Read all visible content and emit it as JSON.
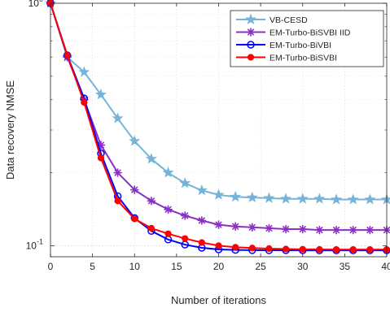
{
  "chart_data": {
    "type": "line",
    "title": "",
    "xlabel": "Number of iterations",
    "ylabel": "Data recovery NMSE",
    "xlim": [
      0,
      40
    ],
    "ylim": [
      0.09,
      1
    ],
    "y_scale": "log",
    "grid": true,
    "legend_position": "top-right",
    "x_ticks": [
      0,
      5,
      10,
      15,
      20,
      25,
      30,
      35,
      40
    ],
    "x_tick_labels": [
      "0",
      "5",
      "10",
      "15",
      "20",
      "25",
      "30",
      "35",
      "40"
    ],
    "y_ticks": [
      0.1,
      1
    ],
    "y_tick_labels": [
      {
        "base": "10",
        "exp": "-1"
      },
      {
        "base": "10",
        "exp": "0"
      }
    ],
    "series": [
      {
        "name": "VB-CESD",
        "color": "#76b4d7",
        "marker": "pentagram",
        "x": [
          0,
          2,
          4,
          6,
          8,
          10,
          12,
          14,
          16,
          18,
          20,
          22,
          24,
          26,
          28,
          30,
          32,
          34,
          36,
          38,
          40
        ],
        "y": [
          1.0,
          0.6,
          0.52,
          0.42,
          0.335,
          0.27,
          0.228,
          0.2,
          0.181,
          0.169,
          0.162,
          0.159,
          0.158,
          0.157,
          0.156,
          0.156,
          0.156,
          0.155,
          0.155,
          0.155,
          0.155
        ]
      },
      {
        "name": "EM-Turbo-BiSVBI IID",
        "color": "#8b2fc9",
        "marker": "star",
        "x": [
          0,
          2,
          4,
          6,
          8,
          10,
          12,
          14,
          16,
          18,
          20,
          22,
          24,
          26,
          28,
          30,
          32,
          34,
          36,
          38,
          40
        ],
        "y": [
          1.0,
          0.6,
          0.4,
          0.26,
          0.2,
          0.17,
          0.153,
          0.141,
          0.133,
          0.127,
          0.122,
          0.12,
          0.119,
          0.118,
          0.117,
          0.117,
          0.116,
          0.116,
          0.116,
          0.116,
          0.116
        ]
      },
      {
        "name": "EM-Turbo-BiVBI",
        "color": "#0000ff",
        "marker": "circle",
        "x": [
          0,
          2,
          4,
          6,
          8,
          10,
          12,
          14,
          16,
          18,
          20,
          22,
          24,
          26,
          28,
          30,
          32,
          34,
          36,
          38,
          40
        ],
        "y": [
          1.0,
          0.61,
          0.405,
          0.24,
          0.16,
          0.13,
          0.115,
          0.106,
          0.101,
          0.098,
          0.0965,
          0.096,
          0.0958,
          0.0957,
          0.0957,
          0.0956,
          0.0956,
          0.0956,
          0.0956,
          0.0956,
          0.0956
        ]
      },
      {
        "name": "EM-Turbo-BiSVBI",
        "color": "#ff0000",
        "marker": "filled-circle",
        "x": [
          0,
          2,
          4,
          6,
          8,
          10,
          12,
          14,
          16,
          18,
          20,
          22,
          24,
          26,
          28,
          30,
          32,
          34,
          36,
          38,
          40
        ],
        "y": [
          1.0,
          0.61,
          0.39,
          0.23,
          0.153,
          0.129,
          0.118,
          0.112,
          0.107,
          0.103,
          0.1,
          0.0985,
          0.0978,
          0.0972,
          0.0968,
          0.0966,
          0.0965,
          0.0964,
          0.0964,
          0.0964,
          0.0964
        ]
      }
    ]
  }
}
